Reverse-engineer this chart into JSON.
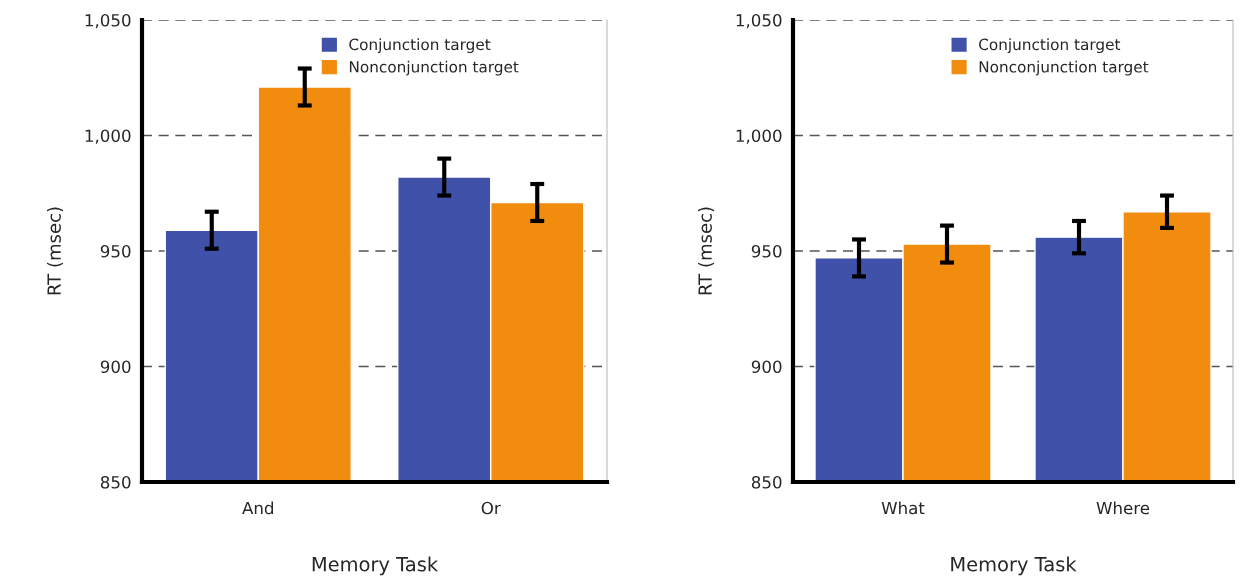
{
  "chart_data": [
    {
      "type": "bar",
      "categories": [
        "And",
        "Or"
      ],
      "xlabel": "Memory Task",
      "ylabel": "RT (msec)",
      "ylim": [
        850,
        1050
      ],
      "yticks": [
        {
          "value": 850,
          "label": "850"
        },
        {
          "value": 900,
          "label": "900"
        },
        {
          "value": 950,
          "label": "950"
        },
        {
          "value": 1000,
          "label": "1,000"
        },
        {
          "value": 1050,
          "label": "1,050"
        }
      ],
      "grid": "y",
      "legend": "top right",
      "series": [
        {
          "name": "Conjunction target",
          "color": "#3f51a8",
          "values": [
            959,
            982
          ],
          "errors": [
            8,
            8
          ]
        },
        {
          "name": "Nonconjunction target",
          "color": "#f28c0f",
          "values": [
            1021,
            971
          ],
          "errors": [
            8,
            8
          ]
        }
      ]
    },
    {
      "type": "bar",
      "categories": [
        "What",
        "Where"
      ],
      "xlabel": "Memory Task",
      "ylabel": "RT (msec)",
      "ylim": [
        850,
        1050
      ],
      "yticks": [
        {
          "value": 850,
          "label": "850"
        },
        {
          "value": 900,
          "label": "900"
        },
        {
          "value": 950,
          "label": "950"
        },
        {
          "value": 1000,
          "label": "1,000"
        },
        {
          "value": 1050,
          "label": "1,050"
        }
      ],
      "grid": "y",
      "legend": "top right",
      "series": [
        {
          "name": "Conjunction target",
          "color": "#3f51a8",
          "values": [
            947,
            956
          ],
          "errors": [
            8,
            7
          ]
        },
        {
          "name": "Nonconjunction target",
          "color": "#f28c0f",
          "values": [
            953,
            967
          ],
          "errors": [
            8,
            7
          ]
        }
      ]
    }
  ]
}
